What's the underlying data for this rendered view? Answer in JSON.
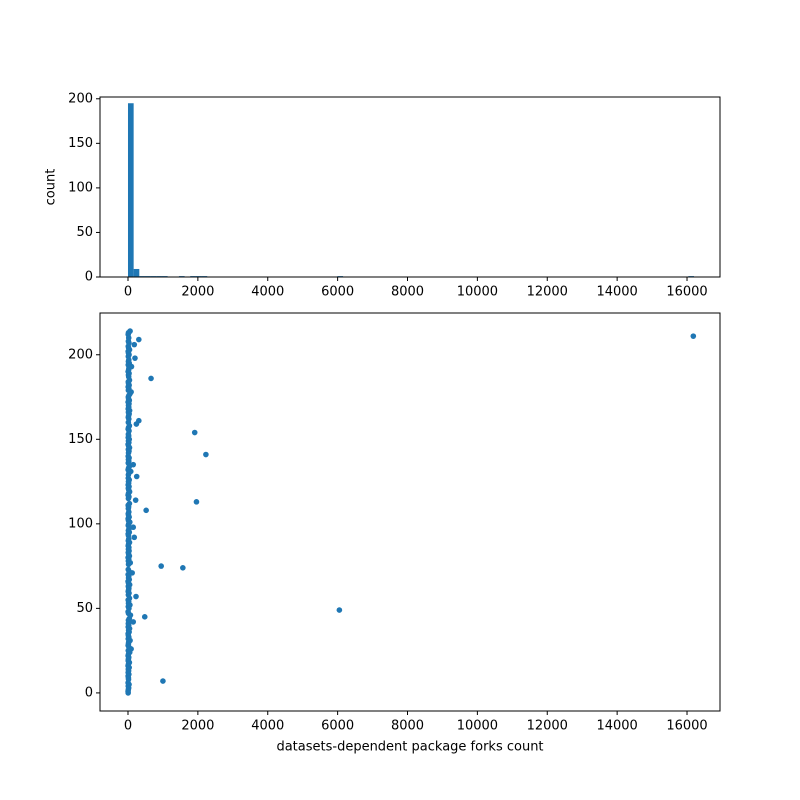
{
  "chart_data": [
    {
      "type": "histogram",
      "ylabel": "count",
      "color": "#1f77b4",
      "bins": [
        0,
        162,
        324,
        486,
        648,
        810,
        972,
        1134,
        1296,
        1458,
        1620,
        1782,
        1944,
        2106,
        2268,
        2430,
        2592,
        2754,
        2916,
        3078,
        3240,
        3402,
        3564,
        3726,
        3888,
        4050,
        4212,
        4374,
        4536,
        4698,
        4860,
        5022,
        5184,
        5346,
        5508,
        5670,
        5832,
        5994,
        6156,
        6318,
        6480,
        6642,
        6804,
        6966,
        7128,
        7290,
        7452,
        7614,
        7776,
        7938,
        8100,
        8262,
        8424,
        8586,
        8748,
        8910,
        9072,
        9234,
        9396,
        9558,
        9720,
        9882,
        10044,
        10206,
        10368,
        10530,
        10692,
        10854,
        11016,
        11178,
        11340,
        11502,
        11664,
        11826,
        11988,
        12150,
        12312,
        12474,
        12636,
        12798,
        12960,
        13122,
        13284,
        13446,
        13608,
        13770,
        13932,
        14094,
        14256,
        14418,
        14580,
        14742,
        14904,
        15066,
        15228,
        15390,
        15552,
        15714,
        15876,
        16038,
        16200
      ],
      "values": [
        195,
        9,
        1,
        1,
        1,
        1,
        1,
        0,
        0,
        1,
        0,
        1,
        1,
        1,
        0,
        0,
        0,
        0,
        0,
        0,
        0,
        0,
        0,
        0,
        0,
        0,
        0,
        0,
        0,
        0,
        0,
        0,
        0,
        0,
        0,
        0,
        0,
        1,
        0,
        0,
        0,
        0,
        0,
        0,
        0,
        0,
        0,
        0,
        0,
        0,
        0,
        0,
        0,
        0,
        0,
        0,
        0,
        0,
        0,
        0,
        0,
        0,
        0,
        0,
        0,
        0,
        0,
        0,
        0,
        0,
        0,
        0,
        0,
        0,
        0,
        0,
        0,
        0,
        0,
        0,
        0,
        0,
        0,
        0,
        0,
        0,
        0,
        0,
        0,
        0,
        0,
        0,
        0,
        0,
        0,
        0,
        0,
        0,
        0,
        1
      ],
      "xlim": [
        -801,
        16944
      ],
      "ylim": [
        0,
        202
      ],
      "xticks": [
        0,
        2000,
        4000,
        6000,
        8000,
        10000,
        12000,
        14000,
        16000
      ],
      "yticks": [
        0,
        50,
        100,
        150,
        200
      ]
    },
    {
      "type": "scatter",
      "xlabel": "datasets-dependent package forks count",
      "color": "#1f77b4",
      "x": [
        5,
        2,
        10,
        20,
        8,
        30,
        3,
        1000,
        15,
        12,
        4,
        25,
        6,
        18,
        9,
        35,
        2,
        14,
        40,
        7,
        11,
        22,
        3,
        16,
        50,
        8,
        90,
        28,
        5,
        13,
        19,
        60,
        7,
        24,
        10,
        4,
        33,
        17,
        45,
        6,
        21,
        9,
        150,
        12,
        38,
        480,
        70,
        15,
        3,
        6050,
        27,
        8,
        55,
        14,
        20,
        5,
        42,
        230,
        11,
        30,
        6,
        18,
        25,
        9,
        48,
        13,
        2,
        36,
        16,
        22,
        4,
        120,
        29,
        7,
        1570,
        950,
        15,
        65,
        10,
        23,
        3,
        40,
        19,
        8,
        31,
        12,
        26,
        6,
        17,
        44,
        9,
        21,
        180,
        14,
        5,
        37,
        11,
        28,
        150,
        7,
        20,
        52,
        13,
        4,
        33,
        16,
        8,
        24,
        520,
        10,
        18,
        6,
        41,
        1960,
        220,
        12,
        27,
        3,
        15,
        46,
        22,
        9,
        30,
        5,
        19,
        14,
        35,
        8,
        250,
        11,
        26,
        80,
        4,
        17,
        39,
        150,
        7,
        23,
        12,
        32,
        6,
        2230,
        15,
        28,
        9,
        43,
        18,
        3,
        25,
        13,
        36,
        7,
        20,
        11,
        1910,
        30,
        5,
        16,
        40,
        240,
        10,
        310,
        24,
        8,
        19,
        34,
        12,
        47,
        6,
        22,
        14,
        29,
        3,
        38,
        17,
        9,
        27,
        60,
        90,
        11,
        25,
        5,
        33,
        15,
        8,
        42,
        660,
        20,
        13,
        31,
        4,
        18,
        26,
        100,
        7,
        36,
        12,
        23,
        200,
        9,
        30,
        15,
        5,
        44,
        19,
        8,
        180,
        27,
        11,
        310,
        21,
        16180,
        6,
        14,
        60
      ],
      "y": [
        0,
        1,
        2,
        3,
        4,
        5,
        6,
        7,
        8,
        9,
        10,
        11,
        12,
        13,
        14,
        15,
        16,
        17,
        18,
        19,
        20,
        21,
        22,
        23,
        24,
        25,
        26,
        27,
        28,
        29,
        30,
        31,
        32,
        33,
        34,
        35,
        36,
        37,
        38,
        39,
        40,
        41,
        42,
        43,
        44,
        45,
        46,
        47,
        48,
        49,
        50,
        51,
        52,
        53,
        54,
        55,
        56,
        57,
        58,
        59,
        60,
        61,
        62,
        63,
        64,
        65,
        66,
        67,
        68,
        69,
        70,
        71,
        72,
        73,
        74,
        75,
        76,
        77,
        78,
        79,
        80,
        81,
        82,
        83,
        84,
        85,
        86,
        87,
        88,
        89,
        90,
        91,
        92,
        93,
        94,
        95,
        96,
        97,
        98,
        99,
        100,
        101,
        102,
        103,
        104,
        105,
        106,
        107,
        108,
        109,
        110,
        111,
        112,
        113,
        114,
        115,
        116,
        117,
        118,
        119,
        120,
        121,
        122,
        123,
        124,
        125,
        126,
        127,
        128,
        129,
        130,
        131,
        132,
        133,
        134,
        135,
        136,
        137,
        138,
        139,
        140,
        141,
        142,
        143,
        144,
        145,
        146,
        147,
        148,
        149,
        150,
        151,
        152,
        153,
        154,
        155,
        156,
        157,
        158,
        159,
        160,
        161,
        162,
        163,
        164,
        165,
        166,
        167,
        168,
        169,
        170,
        171,
        172,
        173,
        174,
        175,
        176,
        177,
        178,
        179,
        180,
        181,
        182,
        183,
        184,
        185,
        186,
        187,
        188,
        189,
        190,
        191,
        192,
        193,
        194,
        195,
        196,
        197,
        198,
        199,
        200,
        201,
        202,
        203,
        204,
        205,
        206,
        207,
        208,
        209,
        210,
        211,
        212,
        213,
        214
      ],
      "xlim": [
        -801,
        16944
      ],
      "ylim": [
        -10.7,
        224.7
      ],
      "xticks": [
        0,
        2000,
        4000,
        6000,
        8000,
        10000,
        12000,
        14000,
        16000
      ],
      "yticks": [
        0,
        50,
        100,
        150,
        200
      ]
    }
  ]
}
